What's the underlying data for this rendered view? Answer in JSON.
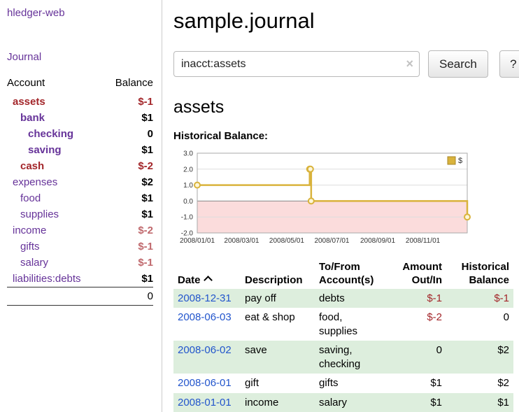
{
  "colors": {
    "purple": "#663399",
    "blue": "#2255cc",
    "neg_strong": "#a3262a",
    "neg_soft": "#c0696d",
    "row_green": "#ddeedd",
    "gold": "#d9b33c",
    "pink": "#fbdcdc"
  },
  "app": {
    "brand": "hledger-web",
    "nav_journal": "Journal"
  },
  "sidebar": {
    "header_account": "Account",
    "header_balance": "Balance",
    "accounts": [
      {
        "name": "assets",
        "balance": "$-1",
        "indent": 0,
        "bold": true,
        "name_color": "neg_strong",
        "balance_color": "neg_strong"
      },
      {
        "name": "bank",
        "balance": "$1",
        "indent": 1,
        "bold": true
      },
      {
        "name": "checking",
        "balance": "0",
        "indent": 2,
        "bold": true
      },
      {
        "name": "saving",
        "balance": "$1",
        "indent": 2,
        "bold": true
      },
      {
        "name": "cash",
        "balance": "$-2",
        "indent": 1,
        "bold": true,
        "name_color": "neg_strong",
        "balance_color": "neg_strong"
      },
      {
        "name": "expenses",
        "balance": "$2",
        "indent": 0
      },
      {
        "name": "food",
        "balance": "$1",
        "indent": 1
      },
      {
        "name": "supplies",
        "balance": "$1",
        "indent": 1
      },
      {
        "name": "income",
        "balance": "$-2",
        "indent": 0,
        "balance_color": "neg_soft"
      },
      {
        "name": "gifts",
        "balance": "$-1",
        "indent": 1,
        "balance_color": "neg_soft"
      },
      {
        "name": "salary",
        "balance": "$-1",
        "indent": 1,
        "balance_color": "neg_soft"
      },
      {
        "name": "liabilities:debts",
        "balance": "$1",
        "indent": 0
      }
    ],
    "total": "0"
  },
  "main": {
    "title": "sample.journal",
    "search": {
      "value": "inacct:assets",
      "clear_icon": "×",
      "button_label": "Search",
      "help_label": "?"
    },
    "account_heading": "assets",
    "chart_label": "Historical Balance:"
  },
  "chart_data": {
    "type": "line",
    "step": true,
    "title": "Historical Balance",
    "legend": [
      "$"
    ],
    "legend_position": "top-right",
    "x": [
      "2008-01-01",
      "2008-06-01",
      "2008-06-02",
      "2008-06-03",
      "2008-12-31"
    ],
    "values": [
      1,
      2,
      2,
      0,
      -1
    ],
    "ylim": [
      -2,
      3
    ],
    "y_ticks": [
      "3.0",
      "2.0",
      "1.0",
      "0.0",
      "-1.0",
      "-2.0"
    ],
    "x_ticks": [
      "2008/01/01",
      "2008/03/01",
      "2008/05/01",
      "2008/07/01",
      "2008/09/01",
      "2008/11/01"
    ],
    "x_tick_dates": [
      "2008-01-01",
      "2008-03-01",
      "2008-05-01",
      "2008-07-01",
      "2008-09-01",
      "2008-11-01"
    ],
    "grid": true,
    "negative_region_fill": true
  },
  "register": {
    "columns": [
      {
        "label": "Date",
        "align": "left",
        "sort": "asc"
      },
      {
        "label": "Description",
        "align": "left"
      },
      {
        "label": "To/From Account(s)",
        "align": "left"
      },
      {
        "label": "Amount Out/In",
        "align": "right"
      },
      {
        "label": "Historical Balance",
        "align": "right"
      }
    ],
    "rows": [
      {
        "date": "2008-12-31",
        "description": "pay off",
        "accounts": "debts",
        "amount": "$-1",
        "amount_negative": true,
        "balance": "$-1",
        "balance_negative": true
      },
      {
        "date": "2008-06-03",
        "description": "eat & shop",
        "accounts": "food, supplies",
        "amount": "$-2",
        "amount_negative": true,
        "balance": "0",
        "balance_negative": false
      },
      {
        "date": "2008-06-02",
        "description": "save",
        "accounts": "saving, checking",
        "amount": "0",
        "amount_negative": false,
        "balance": "$2",
        "balance_negative": false
      },
      {
        "date": "2008-06-01",
        "description": "gift",
        "accounts": "gifts",
        "amount": "$1",
        "amount_negative": false,
        "balance": "$2",
        "balance_negative": false
      },
      {
        "date": "2008-01-01",
        "description": "income",
        "accounts": "salary",
        "amount": "$1",
        "amount_negative": false,
        "balance": "$1",
        "balance_negative": false
      }
    ]
  }
}
